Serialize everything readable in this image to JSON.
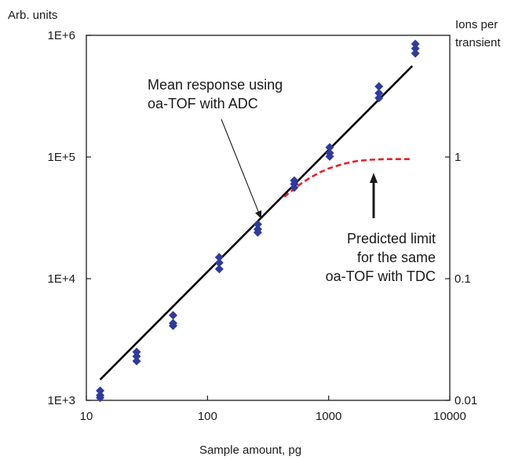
{
  "chart_data": {
    "type": "scatter",
    "title": "",
    "xlabel": "Sample amount, pg",
    "ylabel_left": "Arb. units",
    "ylabel_right_line1": "Ions per",
    "ylabel_right_line2": "transient",
    "x_scale": "log",
    "y_scale": "log",
    "xlim": [
      10,
      10000
    ],
    "ylim": [
      1000,
      1000000
    ],
    "y2lim": [
      0.01,
      10
    ],
    "grid": false,
    "x_ticks": [
      {
        "value": 10,
        "label": "10"
      },
      {
        "value": 100,
        "label": "100"
      },
      {
        "value": 1000,
        "label": "1000"
      },
      {
        "value": 10000,
        "label": "10000"
      }
    ],
    "y_ticks": [
      {
        "value": 1000,
        "label": "1E+3"
      },
      {
        "value": 10000,
        "label": "1E+4"
      },
      {
        "value": 100000,
        "label": "1E+5"
      },
      {
        "value": 1000000,
        "label": "1E+6"
      }
    ],
    "y2_ticks": [
      {
        "value": 0.01,
        "label": "0.01"
      },
      {
        "value": 0.1,
        "label": "0.1"
      },
      {
        "value": 1,
        "label": "1"
      }
    ],
    "series": [
      {
        "kind": "points",
        "marker": "diamond",
        "color": "#2e3a9e",
        "points": [
          [
            13,
            1200
          ],
          [
            13,
            1100
          ],
          [
            13,
            1050
          ],
          [
            26,
            2500
          ],
          [
            26,
            2300
          ],
          [
            26,
            2100
          ],
          [
            52,
            5000
          ],
          [
            52,
            4300
          ],
          [
            52,
            4100
          ],
          [
            125,
            15000
          ],
          [
            125,
            13500
          ],
          [
            125,
            12000
          ],
          [
            260,
            28000
          ],
          [
            260,
            25500
          ],
          [
            260,
            24000
          ],
          [
            520,
            64000
          ],
          [
            520,
            60000
          ],
          [
            520,
            56000
          ],
          [
            1020,
            120000
          ],
          [
            1020,
            108000
          ],
          [
            1020,
            101000
          ],
          [
            2600,
            380000
          ],
          [
            2600,
            335000
          ],
          [
            2600,
            305000
          ],
          [
            5200,
            850000
          ],
          [
            5200,
            780000
          ],
          [
            5200,
            710000
          ]
        ]
      },
      {
        "kind": "line",
        "style": "solid",
        "color": "#000000",
        "points": [
          [
            13,
            1480
          ],
          [
            4900,
            560000
          ]
        ]
      },
      {
        "kind": "line",
        "style": "dashed",
        "color": "#e8202a",
        "points": [
          [
            430,
            47000
          ],
          [
            500,
            53000
          ],
          [
            600,
            61000
          ],
          [
            700,
            67500
          ],
          [
            850,
            75000
          ],
          [
            1000,
            80500
          ],
          [
            1300,
            87500
          ],
          [
            1700,
            92500
          ],
          [
            2200,
            95000
          ],
          [
            3000,
            96000
          ],
          [
            4900,
            96000
          ]
        ]
      }
    ],
    "annotations": [
      {
        "lines": [
          "Mean response using",
          "oa-TOF with ADC"
        ],
        "arrow_to": [
          260,
          28000
        ]
      },
      {
        "lines": [
          "Predicted limit",
          "for the same",
          "oa-TOF with TDC"
        ],
        "arrow_to": [
          2300,
          85000
        ]
      }
    ]
  }
}
